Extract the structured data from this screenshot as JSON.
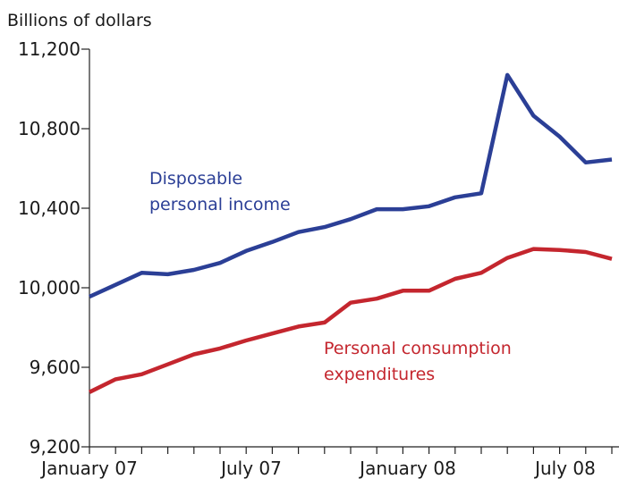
{
  "chart_data": {
    "type": "line",
    "ylabel": "Billions of dollars",
    "ylim": [
      9200,
      11200
    ],
    "yticks": [
      9200,
      9600,
      10000,
      10400,
      10800,
      11200
    ],
    "ytick_labels": [
      "9,200",
      "9,600",
      "10,000",
      "10,400",
      "10,800",
      "11,200"
    ],
    "xlabels": [
      "January 07",
      "July 07",
      "January 08",
      "July 08"
    ],
    "x": [
      "2007-01",
      "2007-02",
      "2007-03",
      "2007-04",
      "2007-05",
      "2007-06",
      "2007-07",
      "2007-08",
      "2007-09",
      "2007-10",
      "2007-11",
      "2007-12",
      "2008-01",
      "2008-02",
      "2008-03",
      "2008-04",
      "2008-05",
      "2008-06",
      "2008-07",
      "2008-08",
      "2008-09"
    ],
    "series": [
      {
        "name_lines": [
          "Disposable",
          "personal income"
        ],
        "color": "#2b3f96",
        "values": [
          9955,
          10015,
          10075,
          10068,
          10090,
          10125,
          10185,
          10230,
          10280,
          10305,
          10345,
          10395,
          10395,
          10410,
          10455,
          10475,
          11070,
          10865,
          10760,
          10630,
          10645
        ]
      },
      {
        "name_lines": [
          "Personal consumption",
          "expenditures"
        ],
        "color": "#c4262e",
        "values": [
          9475,
          9540,
          9565,
          9615,
          9665,
          9695,
          9735,
          9770,
          9805,
          9825,
          9925,
          9945,
          9985,
          9985,
          10045,
          10075,
          10150,
          10195,
          10190,
          10180,
          10145
        ]
      }
    ],
    "grid": false
  }
}
